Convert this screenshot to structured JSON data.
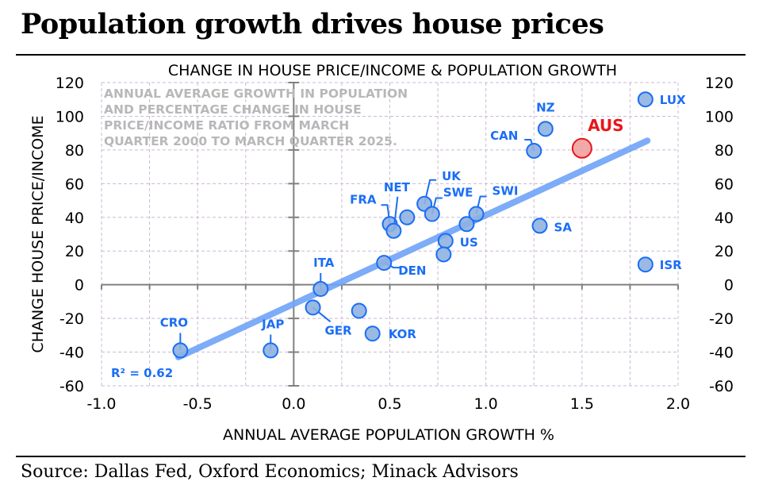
{
  "title": "Population growth drives house prices",
  "source": "Source: Dallas Fed, Oxford Economics; Minack Advisors",
  "chart_data": {
    "type": "scatter",
    "title": "CHANGE IN HOUSE PRICE/INCOME & POPULATION GROWTH",
    "annotation": [
      "ANNUAL AVERAGE GROWTH IN POPULATION",
      "AND PERCENTAGE CHANGE IN HOUSE",
      "PRICE/INCOME RATIO FROM MARCH",
      "QUARTER 2000 TO MARCH QUARTER 2025."
    ],
    "xlabel": "ANNUAL AVERAGE POPULATION GROWTH %",
    "ylabel": "CHANGE HOUSE PRICE/INCOME",
    "xlim": [
      -1.0,
      2.0
    ],
    "ylim": [
      -60,
      120
    ],
    "xticks": [
      "-1.0",
      "-0.5",
      "0.0",
      "0.5",
      "1.0",
      "1.5",
      "2.0"
    ],
    "yticks": [
      "120",
      "100",
      "80",
      "60",
      "40",
      "20",
      "0",
      "-20",
      "-40",
      "-60"
    ],
    "grid": true,
    "colors": {
      "points": "#1a6ef5",
      "point_fill": "#8fb1e0",
      "trend": "#6fa3f7",
      "highlight": "#e8161b",
      "highlight_fill": "#f0a0a0",
      "annotation": "#b8b8b8"
    },
    "r_squared": "R² = 0.62",
    "trendline": {
      "x": [
        -0.6,
        1.84
      ],
      "y": [
        -43,
        85.5
      ]
    },
    "points": [
      {
        "label": "CRO",
        "x": -0.59,
        "y": -39
      },
      {
        "label": "JAP",
        "x": -0.12,
        "y": -39
      },
      {
        "label": "GER",
        "x": 0.1,
        "y": -13.5
      },
      {
        "label": "",
        "x": 0.34,
        "y": -15.5
      },
      {
        "label": "KOR",
        "x": 0.41,
        "y": -29
      },
      {
        "label": "ITA",
        "x": 0.14,
        "y": -2.5
      },
      {
        "label": "DEN",
        "x": 0.47,
        "y": 13
      },
      {
        "label": "FRA",
        "x": 0.5,
        "y": 36
      },
      {
        "label": "NET",
        "x": 0.52,
        "y": 32
      },
      {
        "label": "",
        "x": 0.59,
        "y": 40
      },
      {
        "label": "UK",
        "x": 0.68,
        "y": 48
      },
      {
        "label": "SWE",
        "x": 0.72,
        "y": 42
      },
      {
        "label": "US",
        "x": 0.79,
        "y": 26
      },
      {
        "label": "",
        "x": 0.78,
        "y": 18
      },
      {
        "label": "",
        "x": 0.9,
        "y": 36
      },
      {
        "label": "SWI",
        "x": 0.95,
        "y": 42
      },
      {
        "label": "CAN",
        "x": 1.25,
        "y": 79.5
      },
      {
        "label": "NZ",
        "x": 1.31,
        "y": 92.5
      },
      {
        "label": "AUS",
        "x": 1.5,
        "y": 81,
        "highlight": true
      },
      {
        "label": "SA",
        "x": 1.28,
        "y": 35
      },
      {
        "label": "LUX",
        "x": 1.83,
        "y": 110
      },
      {
        "label": "ISR",
        "x": 1.83,
        "y": 12
      }
    ]
  }
}
